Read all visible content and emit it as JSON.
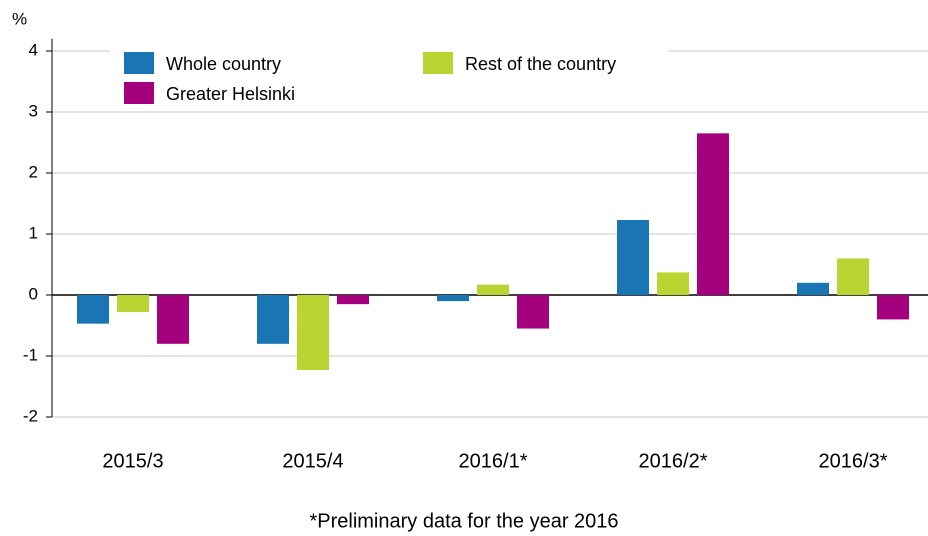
{
  "chart_data": {
    "type": "bar",
    "y_label": "%",
    "categories": [
      "2015/3",
      "2015/4",
      "2016/1*",
      "2016/2*",
      "2016/3*"
    ],
    "series": [
      {
        "name": "Whole country",
        "color": "#1a75b5",
        "values": [
          -0.47,
          -0.8,
          -0.1,
          1.23,
          0.2
        ]
      },
      {
        "name": "Rest of the country",
        "color": "#bad532",
        "values": [
          -0.28,
          -1.23,
          0.17,
          0.37,
          0.6
        ]
      },
      {
        "name": "Greater Helsinki",
        "color": "#a5007d",
        "values": [
          -0.8,
          -0.15,
          -0.55,
          2.65,
          -0.4
        ]
      }
    ],
    "ylim": [
      -2,
      4.2
    ],
    "yticks": [
      -2,
      -1,
      0,
      1,
      2,
      3,
      4
    ],
    "grid": true,
    "note": "*Preliminary data for the year 2016"
  }
}
